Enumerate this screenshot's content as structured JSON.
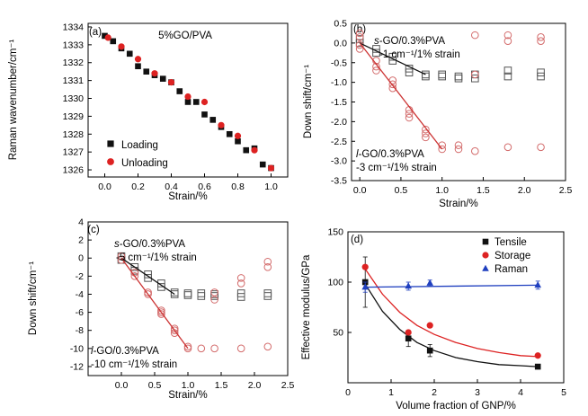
{
  "chart_data": [
    {
      "type": "scatter",
      "panel_label": "(a)",
      "title": "5%GO/PVA",
      "xlabel": "Strain/%",
      "ylabel": "Raman wavenumber/cm⁻¹",
      "xlim": [
        -0.1,
        1.1
      ],
      "ylim": [
        1325.6,
        1334.2
      ],
      "xticks": [
        "0.0",
        "0.2",
        "0.4",
        "0.6",
        "0.8",
        "1.0"
      ],
      "yticks": [
        "1326",
        "1327",
        "1328",
        "1329",
        "1330",
        "1331",
        "1332",
        "1333",
        "1334"
      ],
      "legend_position": "bottom-left",
      "series": [
        {
          "name": "Loading",
          "color": "#111111",
          "marker": "square",
          "x": [
            0.0,
            0.05,
            0.1,
            0.15,
            0.2,
            0.25,
            0.3,
            0.35,
            0.4,
            0.45,
            0.5,
            0.55,
            0.6,
            0.65,
            0.7,
            0.75,
            0.8,
            0.85,
            0.9,
            0.95,
            1.0
          ],
          "y": [
            1333.5,
            1333.2,
            1332.8,
            1332.5,
            1331.8,
            1331.5,
            1331.3,
            1331.1,
            1330.9,
            1330.4,
            1329.8,
            1329.8,
            1329.1,
            1328.8,
            1328.4,
            1328.0,
            1327.6,
            1327.1,
            1327.2,
            1326.3,
            1326.1
          ]
        },
        {
          "name": "Unloading",
          "color": "#dd2222",
          "marker": "circle",
          "x": [
            0.02,
            0.1,
            0.2,
            0.3,
            0.4,
            0.5,
            0.6,
            0.7,
            0.8,
            0.9,
            1.0
          ],
          "y": [
            1333.4,
            1332.9,
            1332.2,
            1331.4,
            1330.9,
            1330.1,
            1329.8,
            1328.5,
            1327.9,
            1327.1,
            1326.1
          ]
        }
      ],
      "fit_line": {
        "x": [
          0.0,
          1.0
        ],
        "y": [
          1333.5,
          1326.1
        ],
        "color": "#dd2222"
      }
    },
    {
      "type": "scatter",
      "panel_label": "(b)",
      "xlabel": "Strain/%",
      "ylabel": "Down shift/cm⁻¹",
      "xlim": [
        -0.1,
        2.5
      ],
      "ylim": [
        -3.5,
        0.5
      ],
      "xticks": [
        "0.0",
        "0.5",
        "1.0",
        "1.5",
        "2.0",
        "2.5"
      ],
      "yticks": [
        "0.5",
        "0.0",
        "-0.5",
        "-1.0",
        "-1.5",
        "-2.0",
        "-2.5",
        "-3.0",
        "-3.5"
      ],
      "annotations": [
        {
          "title": "s-GO/0.3%PVA",
          "slope": "-1 cm⁻¹/1% strain"
        },
        {
          "title": "l-GO/0.3%PVA",
          "slope": "-3 cm⁻¹/1% strain"
        }
      ],
      "series": [
        {
          "name": "s-GO/0.3%PVA",
          "color": "#555555",
          "marker": "open-square",
          "x": [
            0.0,
            0.0,
            0.2,
            0.2,
            0.4,
            0.4,
            0.6,
            0.6,
            0.8,
            0.8,
            1.0,
            1.0,
            1.2,
            1.2,
            1.4,
            1.4,
            1.8,
            1.8,
            2.2,
            2.2
          ],
          "y": [
            0.1,
            0.0,
            -0.15,
            -0.25,
            -0.35,
            -0.45,
            -0.65,
            -0.75,
            -0.8,
            -0.85,
            -0.8,
            -0.85,
            -0.85,
            -0.9,
            -0.8,
            -0.9,
            -0.7,
            -0.85,
            -0.75,
            -0.85
          ]
        },
        {
          "name": "l-GO/0.3%PVA",
          "color": "#d36b6b",
          "marker": "open-circle",
          "x": [
            0.0,
            0.0,
            0.0,
            0.0,
            0.2,
            0.2,
            0.2,
            0.4,
            0.4,
            0.4,
            0.6,
            0.6,
            0.6,
            0.8,
            0.8,
            0.8,
            1.0,
            1.0,
            1.2,
            1.2,
            1.4,
            1.4,
            1.4,
            1.8,
            1.8,
            1.8,
            2.2,
            2.2,
            2.2
          ],
          "y": [
            0.25,
            0.15,
            -0.05,
            -0.15,
            -0.45,
            -0.6,
            -0.7,
            -0.95,
            -1.05,
            -1.15,
            -1.7,
            -1.8,
            -1.9,
            -2.2,
            -2.3,
            -2.4,
            -2.6,
            -2.7,
            -2.6,
            -2.7,
            0.2,
            -0.8,
            -2.75,
            0.2,
            0.05,
            -2.65,
            0.15,
            0.05,
            -2.65
          ]
        }
      ],
      "fit_lines": [
        {
          "x": [
            0.0,
            0.8
          ],
          "y": [
            0.0,
            -0.8
          ],
          "color": "#111111"
        },
        {
          "x": [
            0.0,
            1.0
          ],
          "y": [
            0.0,
            -2.7
          ],
          "color": "#cc3333"
        }
      ]
    },
    {
      "type": "scatter",
      "panel_label": "(c)",
      "xlabel": "Strain/%",
      "ylabel": "Down shift/cm⁻¹",
      "xlim": [
        -0.5,
        2.5
      ],
      "ylim": [
        -13,
        4
      ],
      "xticks": [
        "0.0",
        "0.5",
        "1.0",
        "1.5",
        "2.0",
        "2.5"
      ],
      "yticks": [
        "4",
        "2",
        "0",
        "-2",
        "-4",
        "-6",
        "-8",
        "-10",
        "-12"
      ],
      "annotations": [
        {
          "title": "s-GO/0.3%PVA",
          "slope": "-5 cm⁻¹/1% strain"
        },
        {
          "title": "l-GO/0.3%PVA",
          "slope": "-10 cm⁻¹/1% strain"
        }
      ],
      "series": [
        {
          "name": "s-GO/0.3%PVA",
          "color": "#555555",
          "marker": "open-square",
          "x": [
            0.0,
            0.0,
            0.2,
            0.2,
            0.4,
            0.4,
            0.6,
            0.6,
            0.8,
            0.8,
            1.0,
            1.0,
            1.2,
            1.2,
            1.4,
            1.4,
            1.8,
            1.8,
            2.2,
            2.2
          ],
          "y": [
            0.2,
            -0.2,
            -1.0,
            -1.4,
            -1.8,
            -2.2,
            -2.8,
            -3.2,
            -3.8,
            -4.0,
            -3.9,
            -4.1,
            -3.9,
            -4.2,
            -4.0,
            -4.2,
            -3.9,
            -4.3,
            -3.9,
            -4.2
          ]
        },
        {
          "name": "l-GO/0.3%PVA",
          "color": "#d36b6b",
          "marker": "open-circle",
          "x": [
            0.0,
            0.0,
            0.2,
            0.2,
            0.4,
            0.4,
            0.6,
            0.6,
            0.6,
            0.8,
            0.8,
            0.8,
            1.0,
            1.0,
            1.2,
            1.4,
            1.4,
            1.4,
            1.8,
            1.8,
            1.8,
            2.2,
            2.2,
            2.2
          ],
          "y": [
            0.2,
            -0.2,
            -1.6,
            -2.0,
            -3.8,
            -4.0,
            -5.8,
            -6.0,
            -6.2,
            -7.8,
            -8.0,
            -8.3,
            -9.8,
            -10.0,
            -10.0,
            -3.8,
            -4.6,
            -10.0,
            -2.2,
            -2.8,
            -10.0,
            -0.4,
            -1.0,
            -9.8
          ]
        }
      ],
      "fit_lines": [
        {
          "x": [
            0.0,
            0.8
          ],
          "y": [
            0.0,
            -4.0
          ],
          "color": "#111111"
        },
        {
          "x": [
            0.0,
            1.0
          ],
          "y": [
            0.0,
            -10.0
          ],
          "color": "#cc3333"
        }
      ]
    },
    {
      "type": "scatter",
      "panel_label": "(d)",
      "xlabel": "Volume fraction of GNP/%",
      "ylabel": "Effective modulus/GPa",
      "xlim": [
        0,
        5
      ],
      "ylim": [
        0,
        150
      ],
      "xticks": [
        "0",
        "1",
        "2",
        "3",
        "4",
        "5"
      ],
      "yticks": [
        "50",
        "100",
        "150"
      ],
      "legend_position": "top-right",
      "series": [
        {
          "name": "Tensile",
          "color": "#111111",
          "marker": "square",
          "x": [
            0.4,
            1.4,
            1.9,
            4.4
          ],
          "y": [
            100,
            44,
            32,
            16
          ],
          "err": [
            25,
            8,
            6,
            2
          ]
        },
        {
          "name": "Storage",
          "color": "#dd2222",
          "marker": "circle",
          "x": [
            0.4,
            1.4,
            1.9,
            4.4
          ],
          "y": [
            115,
            50,
            57,
            27
          ],
          "err": [
            0,
            0,
            0,
            0
          ]
        },
        {
          "name": "Raman",
          "color": "#1f3fbf",
          "marker": "triangle",
          "x": [
            0.4,
            1.4,
            1.9,
            4.4
          ],
          "y": [
            95,
            96,
            99,
            97
          ],
          "err": [
            5,
            4,
            3,
            4
          ]
        }
      ],
      "fit_curves": [
        {
          "name": "Tensile fit",
          "color": "#111111",
          "x": [
            0.4,
            0.8,
            1.2,
            1.6,
            2.0,
            2.5,
            3.0,
            3.5,
            4.0,
            4.4
          ],
          "y": [
            98,
            71,
            53,
            40,
            32,
            25,
            21,
            18,
            17,
            16
          ]
        },
        {
          "name": "Storage fit",
          "color": "#dd2222",
          "x": [
            0.4,
            0.8,
            1.2,
            1.6,
            2.0,
            2.5,
            3.0,
            3.5,
            4.0,
            4.4
          ],
          "y": [
            113,
            88,
            70,
            57,
            48,
            40,
            34,
            30,
            27,
            26
          ]
        },
        {
          "name": "Raman fit",
          "color": "#1f3fbf",
          "x": [
            0.4,
            4.4
          ],
          "y": [
            95,
            97
          ]
        }
      ]
    }
  ]
}
